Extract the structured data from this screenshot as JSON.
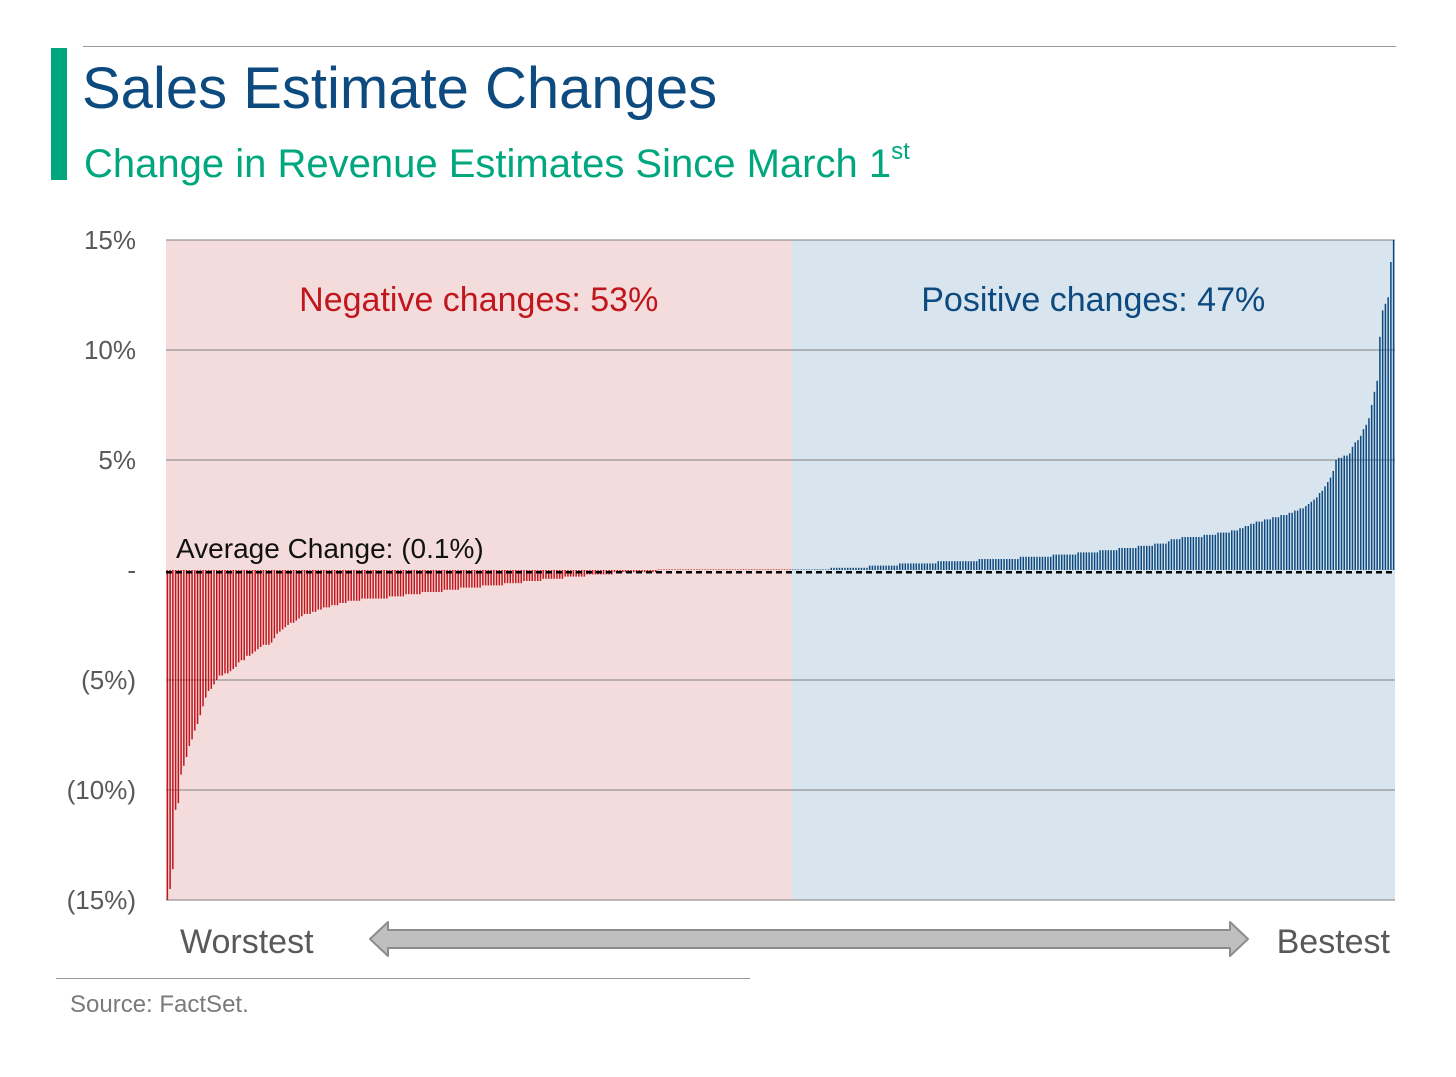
{
  "header": {
    "title": "Sales Estimate Changes",
    "subtitle": "Change in Revenue Estimates Since March 1",
    "subtitle_superscript": "st"
  },
  "chart_data": {
    "type": "bar",
    "ylim": [
      -15,
      15
    ],
    "yticks": [
      {
        "value": 15,
        "label": "15%"
      },
      {
        "value": 10,
        "label": "10%"
      },
      {
        "value": 5,
        "label": "5%"
      },
      {
        "value": 0,
        "label": "-"
      },
      {
        "value": -5,
        "label": "(5%)"
      },
      {
        "value": -10,
        "label": "(10%)"
      },
      {
        "value": -15,
        "label": "(15%)"
      }
    ],
    "grid": true,
    "regions": [
      {
        "label": "Negative changes: 53%",
        "share": 0.53,
        "color": "#f4dcdc",
        "text_color": "#c0161c"
      },
      {
        "label": "Positive changes: 47%",
        "share": 0.47,
        "color": "#d8e4ee",
        "text_color": "#0d4a80"
      }
    ],
    "average": {
      "value": -0.1,
      "label": "Average Change: (0.1%)"
    },
    "x_start_label": "Worstest",
    "x_end_label": "Bestest",
    "negative_color": "#c0161c",
    "positive_color": "#0d4a80",
    "negative_values": [
      -15.0,
      -14.5,
      -13.6,
      -10.9,
      -10.6,
      -9.3,
      -8.9,
      -8.5,
      -8.0,
      -7.7,
      -7.3,
      -7.0,
      -6.6,
      -6.2,
      -5.8,
      -5.5,
      -5.4,
      -5.2,
      -5.0,
      -4.8,
      -4.8,
      -4.7,
      -4.7,
      -4.6,
      -4.5,
      -4.4,
      -4.2,
      -4.1,
      -4.1,
      -3.9,
      -3.9,
      -3.8,
      -3.7,
      -3.6,
      -3.5,
      -3.4,
      -3.4,
      -3.4,
      -3.3,
      -3.1,
      -2.9,
      -2.8,
      -2.7,
      -2.6,
      -2.5,
      -2.4,
      -2.4,
      -2.3,
      -2.2,
      -2.1,
      -2.0,
      -2.0,
      -2.0,
      -1.9,
      -1.9,
      -1.8,
      -1.8,
      -1.7,
      -1.7,
      -1.7,
      -1.6,
      -1.6,
      -1.6,
      -1.5,
      -1.5,
      -1.5,
      -1.4,
      -1.4,
      -1.4,
      -1.4,
      -1.4,
      -1.3,
      -1.3,
      -1.3,
      -1.3,
      -1.3,
      -1.3,
      -1.3,
      -1.3,
      -1.3,
      -1.3,
      -1.2,
      -1.2,
      -1.2,
      -1.2,
      -1.2,
      -1.2,
      -1.1,
      -1.1,
      -1.1,
      -1.1,
      -1.1,
      -1.1,
      -1.0,
      -1.0,
      -1.0,
      -1.0,
      -1.0,
      -1.0,
      -1.0,
      -1.0,
      -0.9,
      -0.9,
      -0.9,
      -0.9,
      -0.9,
      -0.9,
      -0.8,
      -0.8,
      -0.8,
      -0.8,
      -0.8,
      -0.8,
      -0.8,
      -0.8,
      -0.7,
      -0.7,
      -0.7,
      -0.7,
      -0.7,
      -0.7,
      -0.7,
      -0.7,
      -0.6,
      -0.6,
      -0.6,
      -0.6,
      -0.6,
      -0.6,
      -0.6,
      -0.5,
      -0.5,
      -0.5,
      -0.5,
      -0.5,
      -0.5,
      -0.5,
      -0.4,
      -0.4,
      -0.4,
      -0.4,
      -0.4,
      -0.4,
      -0.4,
      -0.4,
      -0.3,
      -0.3,
      -0.3,
      -0.3,
      -0.3,
      -0.3,
      -0.3,
      -0.3,
      -0.2,
      -0.2,
      -0.2,
      -0.2,
      -0.2,
      -0.2,
      -0.2,
      -0.2,
      -0.2,
      -0.2,
      -0.1,
      -0.1,
      -0.1,
      -0.1,
      -0.1,
      -0.1,
      -0.1,
      -0.1,
      -0.1,
      -0.1,
      -0.1,
      -0.1,
      -0.1,
      -0.1,
      -0.1,
      -0.1,
      -0.0,
      -0.0,
      -0.0,
      -0.0,
      -0.0,
      -0.0,
      -0.0,
      -0.0,
      -0.0,
      -0.0,
      -0.0,
      -0.0,
      -0.0,
      -0.0,
      -0.0,
      -0.0,
      -0.0,
      -0.0,
      -0.0,
      -0.0,
      -0.0,
      -0.0,
      -0.0,
      -0.0,
      -0.0,
      -0.0,
      -0.0,
      -0.0,
      -0.0,
      -0.0,
      -0.0,
      -0.0,
      -0.0,
      -0.0,
      -0.0,
      -0.0,
      -0.0,
      -0.0,
      -0.0,
      -0.0,
      -0.0,
      -0.0,
      -0.0,
      -0.0,
      -0.0,
      -0.0,
      -0.0,
      -0.0,
      -0.0
    ],
    "positive_values": [
      0.0,
      0.0,
      0.0,
      0.0,
      0.0,
      0.0,
      0.0,
      0.0,
      0.0,
      0.0,
      0.0,
      0.0,
      0.0,
      0.0,
      0.1,
      0.1,
      0.1,
      0.1,
      0.1,
      0.1,
      0.1,
      0.1,
      0.1,
      0.1,
      0.1,
      0.1,
      0.1,
      0.1,
      0.2,
      0.2,
      0.2,
      0.2,
      0.2,
      0.2,
      0.2,
      0.2,
      0.2,
      0.2,
      0.2,
      0.3,
      0.3,
      0.3,
      0.3,
      0.3,
      0.3,
      0.3,
      0.3,
      0.3,
      0.3,
      0.3,
      0.3,
      0.3,
      0.3,
      0.4,
      0.4,
      0.4,
      0.4,
      0.4,
      0.4,
      0.4,
      0.4,
      0.4,
      0.4,
      0.4,
      0.4,
      0.4,
      0.4,
      0.4,
      0.5,
      0.5,
      0.5,
      0.5,
      0.5,
      0.5,
      0.5,
      0.5,
      0.5,
      0.5,
      0.5,
      0.5,
      0.5,
      0.5,
      0.5,
      0.6,
      0.6,
      0.6,
      0.6,
      0.6,
      0.6,
      0.6,
      0.6,
      0.6,
      0.6,
      0.6,
      0.6,
      0.7,
      0.7,
      0.7,
      0.7,
      0.7,
      0.7,
      0.7,
      0.7,
      0.7,
      0.8,
      0.8,
      0.8,
      0.8,
      0.8,
      0.8,
      0.8,
      0.8,
      0.9,
      0.9,
      0.9,
      0.9,
      0.9,
      0.9,
      0.9,
      1.0,
      1.0,
      1.0,
      1.0,
      1.0,
      1.0,
      1.0,
      1.1,
      1.1,
      1.1,
      1.1,
      1.1,
      1.1,
      1.2,
      1.2,
      1.2,
      1.2,
      1.2,
      1.3,
      1.4,
      1.4,
      1.4,
      1.4,
      1.5,
      1.5,
      1.5,
      1.5,
      1.5,
      1.5,
      1.5,
      1.5,
      1.6,
      1.6,
      1.6,
      1.6,
      1.6,
      1.7,
      1.7,
      1.7,
      1.7,
      1.7,
      1.8,
      1.8,
      1.8,
      1.9,
      1.9,
      2.0,
      2.0,
      2.1,
      2.1,
      2.2,
      2.2,
      2.2,
      2.3,
      2.3,
      2.3,
      2.4,
      2.4,
      2.4,
      2.5,
      2.5,
      2.5,
      2.6,
      2.6,
      2.7,
      2.7,
      2.8,
      2.8,
      2.9,
      3.0,
      3.1,
      3.2,
      3.3,
      3.5,
      3.6,
      3.8,
      4.0,
      4.2,
      4.5,
      5.0,
      5.1,
      5.1,
      5.2,
      5.2,
      5.3,
      5.6,
      5.8,
      5.9,
      6.1,
      6.4,
      6.6,
      6.9,
      7.5,
      8.1,
      8.6,
      10.6,
      11.8,
      12.1,
      12.4,
      14.0,
      15.0
    ]
  },
  "footer": {
    "source": "Source: FactSet."
  }
}
